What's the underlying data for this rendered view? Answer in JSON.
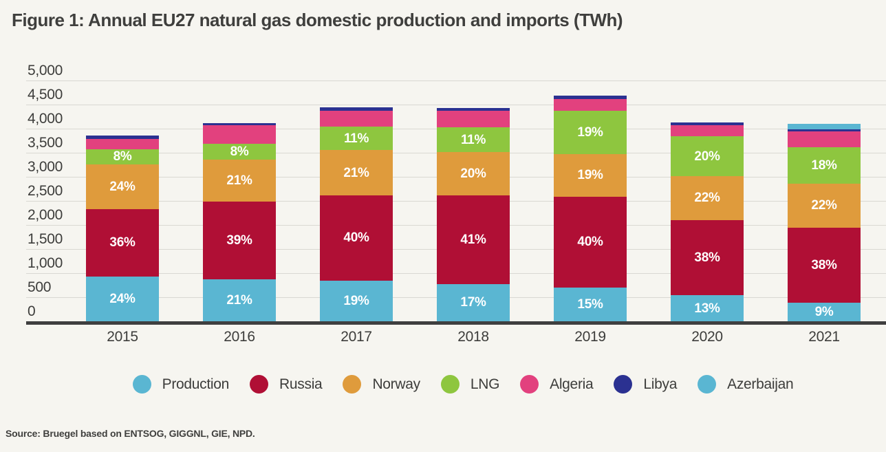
{
  "title": "Figure 1: Annual EU27 natural gas domestic production and imports (TWh)",
  "source_note": "Source: Bruegel based on ENTSOG, GIGGNL, GIE, NPD.",
  "colors": {
    "background": "#f6f5f0",
    "gridline": "#d9d8d2",
    "axis": "#3f3f3f",
    "text": "#3d3d3b",
    "bar_label_text": "#ffffff"
  },
  "chart_data": {
    "type": "bar",
    "stacked": true,
    "unit": "TWh",
    "title": "Figure 1: Annual EU27 natural gas domestic production and imports (TWh)",
    "categories": [
      "2015",
      "2016",
      "2017",
      "2018",
      "2019",
      "2020",
      "2021"
    ],
    "ylim": [
      0,
      5000
    ],
    "grid": true,
    "legend_position": "bottom",
    "yticks": [
      {
        "value": 0,
        "label": "0"
      },
      {
        "value": 500,
        "label": "500"
      },
      {
        "value": 1000,
        "label": "1,000"
      },
      {
        "value": 1500,
        "label": "1,500"
      },
      {
        "value": 2000,
        "label": "2,000"
      },
      {
        "value": 2500,
        "label": "2,500"
      },
      {
        "value": 3000,
        "label": "3,000"
      },
      {
        "value": 3500,
        "label": "3,500"
      },
      {
        "value": 4000,
        "label": "4,000"
      },
      {
        "value": 4500,
        "label": "4,500"
      },
      {
        "value": 5000,
        "label": "5,000"
      }
    ],
    "totals_twh": [
      3855,
      4110,
      4440,
      4425,
      4680,
      4125,
      4095
    ],
    "series": [
      {
        "name": "Production",
        "color": "#5ab6d2",
        "pct_of_total": [
          24.2,
          21.2,
          19.0,
          17.5,
          15.1,
          13.0,
          9.3
        ],
        "bar_labels": [
          "24%",
          "21%",
          "19%",
          "17%",
          "15%",
          "13%",
          "9%"
        ]
      },
      {
        "name": "Russia",
        "color": "#b00f35",
        "pct_of_total": [
          36.2,
          39.2,
          40.0,
          41.5,
          40.1,
          38.0,
          38.3
        ],
        "bar_labels": [
          "36%",
          "39%",
          "40%",
          "41%",
          "40%",
          "38%",
          "38%"
        ]
      },
      {
        "name": "Norway",
        "color": "#df9b3c",
        "pct_of_total": [
          24.2,
          21.2,
          21.0,
          20.5,
          19.1,
          22.0,
          22.3
        ],
        "bar_labels": [
          "24%",
          "21%",
          "21%",
          "20%",
          "19%",
          "22%",
          "22%"
        ]
      },
      {
        "name": "LNG",
        "color": "#8ec63f",
        "pct_of_total": [
          8.2,
          8.2,
          11.0,
          11.4,
          19.1,
          20.0,
          18.3
        ],
        "bar_labels": [
          "8%",
          "8%",
          "11%",
          "11%",
          "19%",
          "20%",
          "18%"
        ]
      },
      {
        "name": "Algeria",
        "color": "#e2417e",
        "pct_of_total": [
          5.5,
          9.2,
          7.4,
          8.0,
          5.1,
          5.6,
          8.0
        ],
        "bar_labels": [
          null,
          null,
          null,
          null,
          null,
          null,
          null
        ]
      },
      {
        "name": "Libya",
        "color": "#2b3191",
        "pct_of_total": [
          1.7,
          1.0,
          1.6,
          1.1,
          1.5,
          1.4,
          1.0
        ],
        "bar_labels": [
          null,
          null,
          null,
          null,
          null,
          null,
          null
        ]
      },
      {
        "name": "Azerbaijan",
        "color": "#5ab6d2",
        "pct_of_total": [
          0,
          0,
          0,
          0,
          0,
          0,
          2.8
        ],
        "bar_labels": [
          null,
          null,
          null,
          null,
          null,
          null,
          null
        ]
      }
    ],
    "legend": [
      "Production",
      "Russia",
      "Norway",
      "LNG",
      "Algeria",
      "Libya",
      "Azerbaijan"
    ]
  }
}
